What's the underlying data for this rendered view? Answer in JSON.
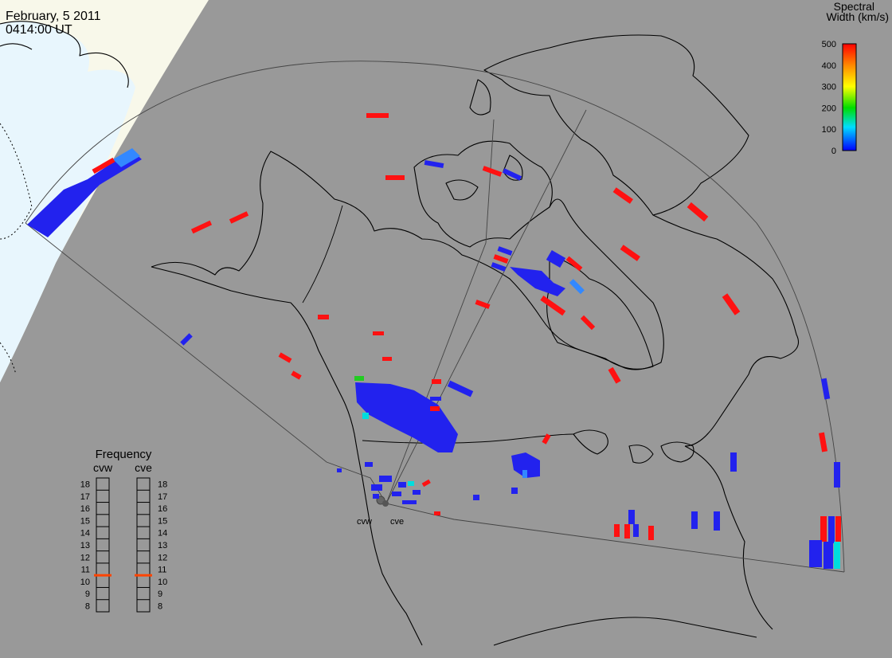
{
  "header": {
    "date": "February, 5 2011",
    "time": "0414:00 UT"
  },
  "colorbar": {
    "title_line1": "Spectral",
    "title_line2": "Width (km/s)",
    "ticks": [
      "500",
      "400",
      "300",
      "200",
      "100",
      "0"
    ],
    "min": 0,
    "max": 500
  },
  "radars": {
    "west": "cvw",
    "east": "cve"
  },
  "frequency": {
    "title": "Frequency",
    "west_label": "cvw",
    "east_label": "cve",
    "ticks": [
      "18",
      "17",
      "16",
      "15",
      "14",
      "13",
      "12",
      "11",
      "10",
      "9",
      "8"
    ],
    "min": 8,
    "max": 18,
    "cvw_value": 10.5,
    "cve_value": 10.5,
    "marker_color": "#ff4400"
  },
  "colors": {
    "background": "#999999",
    "daylight": "#f8f8ea",
    "ocean_day": "#e8f6fd",
    "low_width": "#2222ee",
    "mid_width": "#00dddd",
    "high_width": "#ff1111"
  }
}
